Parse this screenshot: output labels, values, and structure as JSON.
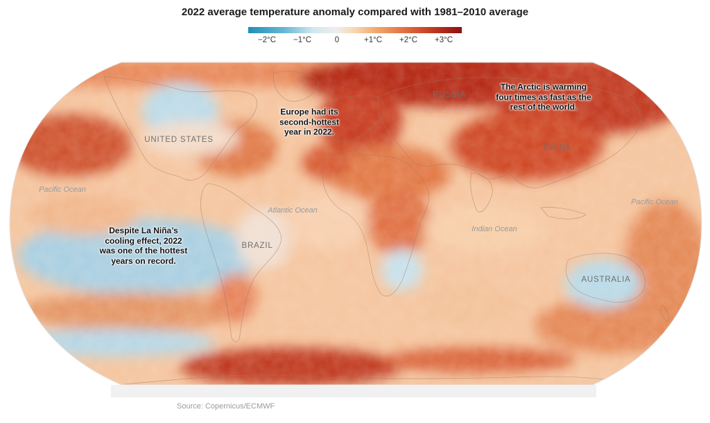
{
  "title": "2022 average temperature anomaly compared with 1981–2010 average",
  "legend": {
    "ticks": [
      "−2°C",
      "−1°C",
      "0",
      "+1°C",
      "+2°C",
      "+3°C"
    ],
    "colors": [
      "#1f8fb4",
      "#6ab7d4",
      "#b9dcea",
      "#e8e8e8",
      "#f7d2aa",
      "#f0a068",
      "#e06a3c",
      "#c4341f",
      "#8e1010"
    ]
  },
  "labels": {
    "russia": "RUSSIA",
    "united_states": "UNITED STATES",
    "china": "CHINA",
    "brazil": "BRAZIL",
    "australia": "AUSTRALIA",
    "pacific_west": "Pacific Ocean",
    "pacific_east": "Pacific Ocean",
    "atlantic": "Atlantic Ocean",
    "indian": "Indian Ocean"
  },
  "annotations": {
    "europe": [
      "Europe had its",
      "second-hottest",
      "year in 2022."
    ],
    "arctic": [
      "The Arctic is warming",
      "four times as fast as the",
      "rest of the world."
    ],
    "lanina": [
      "Despite La Niña’s",
      "cooling effect, 2022",
      "was one of the hottest",
      "years on record."
    ]
  },
  "source": "Source: Copernicus/ECMWF"
}
